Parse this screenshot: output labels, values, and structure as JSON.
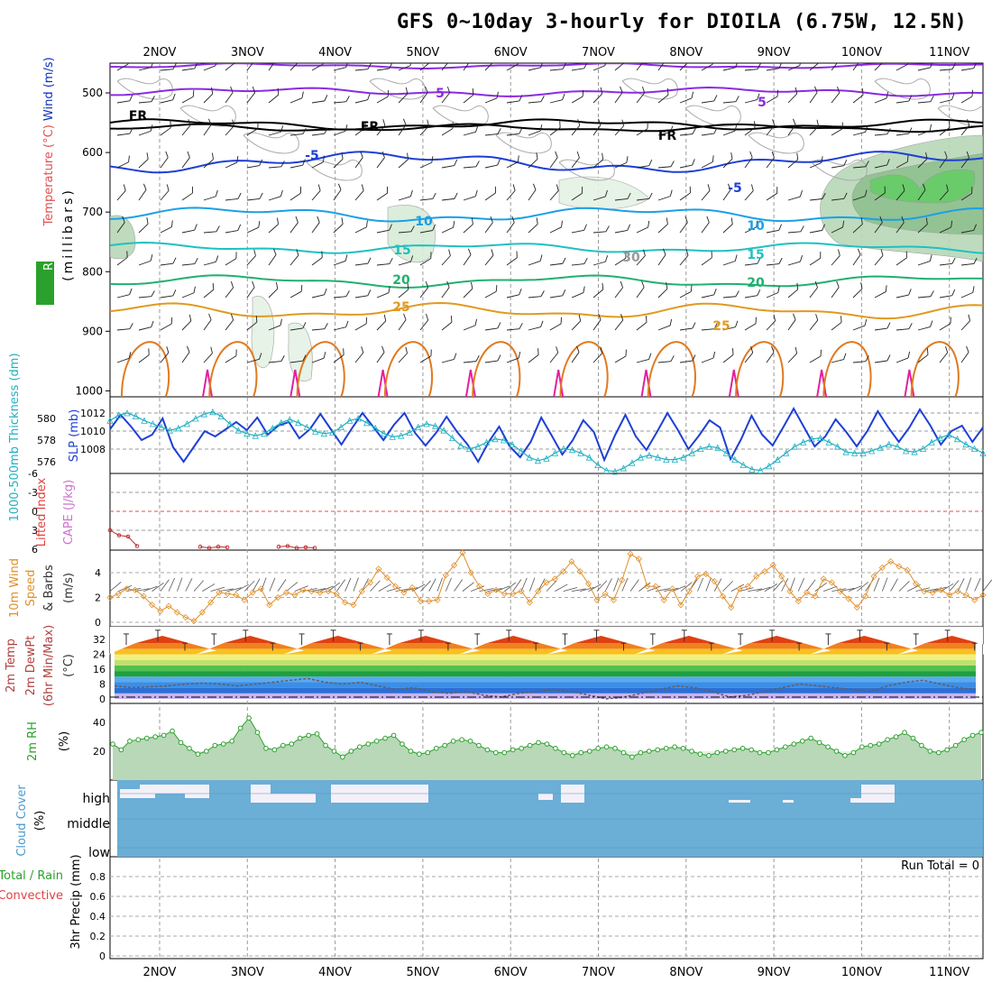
{
  "title": "GFS 0~10day 3-hourly for DIOILA (6.75W, 12.5N)",
  "dates": [
    "2NOV",
    "3NOV",
    "4NOV",
    "5NOV",
    "6NOV",
    "7NOV",
    "8NOV",
    "9NOV",
    "10NOV",
    "11NOV"
  ],
  "colors": {
    "purple": "#8a2be2",
    "black": "#000000",
    "blue": "#1e3fd6",
    "lightblue": "#1aa0e6",
    "cyan": "#20c0c0",
    "teal": "#20b070",
    "orange": "#e09a20",
    "darkorange": "#e07a20",
    "magenta": "#e020a0",
    "cloud": "#6baed6",
    "rhgreen": "#2ca02c"
  },
  "chart_data": [
    {
      "type": "line",
      "panel": "upper-air",
      "ylabel_parts": [
        "RH (%)",
        "Temperature (°C)",
        "Wind (m/s)"
      ],
      "ylabel2": "(millibars)",
      "y_ticks": [
        500,
        600,
        700,
        800,
        900,
        1000
      ],
      "contour_labels": [
        {
          "text": "5",
          "level": "500mb",
          "color": "purple"
        },
        {
          "text": "FR",
          "level": "freezing",
          "color": "black"
        },
        {
          "text": "-5",
          "level": "600mb",
          "color": "blue"
        },
        {
          "text": "10",
          "level": "730mb",
          "color": "lightblue"
        },
        {
          "text": "15",
          "level": "780mb",
          "color": "cyan"
        },
        {
          "text": "20",
          "level": "820mb",
          "color": "teal"
        },
        {
          "text": "25",
          "level": "870mb",
          "color": "orange"
        },
        {
          "text": "30",
          "level": "RH contour",
          "color": "gray"
        }
      ]
    },
    {
      "type": "line",
      "panel": "thickness-slp",
      "ylabel_left": "1000-500mb Thickness (dm)",
      "ylabel_right": "SLP (mb)",
      "thickness_ticks": [
        576,
        578,
        580
      ],
      "slp_ticks": [
        1008,
        1010,
        1012
      ],
      "series": [
        {
          "name": "SLP (mb)",
          "values": [
            1010.2,
            1011.8,
            1010.5,
            1009,
            1009.6,
            1011.4,
            1008.2,
            1006.6,
            1008.3,
            1010,
            1009.4,
            1010.2,
            1011,
            1010.1,
            1011.5,
            1009.6,
            1010.6,
            1011,
            1009.2,
            1010.2,
            1011.9,
            1010.2,
            1008.5,
            1010.3,
            1012,
            1010.5,
            1009,
            1010.7,
            1012,
            1009.8,
            1008.4,
            1009.8,
            1011.6,
            1009.9,
            1008.5,
            1006.6,
            1008.8,
            1010.5,
            1008.3,
            1007.1,
            1008.8,
            1011.5,
            1009.5,
            1007.4,
            1009,
            1011.2,
            1009.9,
            1006.8,
            1009.5,
            1011.8,
            1009.4,
            1007.9,
            1009.9,
            1012,
            1010.1,
            1008,
            1009.5,
            1011.2,
            1010.4,
            1006.9,
            1009.1,
            1011.7,
            1009.6,
            1008.4,
            1010.4,
            1012.5,
            1010.4,
            1008.3,
            1009.4,
            1011.3,
            1009.9,
            1008.3,
            1010,
            1012.2,
            1010.4,
            1008.8,
            1010.4,
            1012.4,
            1010.6,
            1008.5,
            1010,
            1010.6,
            1008.8,
            1010.4
          ]
        },
        {
          "name": "1000-500mb Thickness (dm)",
          "values": [
            579.8,
            580.3,
            580.5,
            580.2,
            579.8,
            579.5,
            579.2,
            578.9,
            579.1,
            579.5,
            580,
            580.4,
            580.6,
            580.2,
            579.5,
            578.9,
            578.6,
            578.4,
            578.6,
            579.1,
            579.6,
            579.9,
            579.6,
            579.2,
            578.8,
            578.6,
            578.7,
            579.2,
            579.8,
            580,
            579.6,
            579.1,
            578.6,
            578.3,
            578.4,
            578.7,
            579.2,
            579.5,
            579.3,
            578.9,
            578.2,
            577.5,
            577.2,
            577.4,
            577.8,
            578.1,
            578,
            577.6,
            577,
            576.4,
            576.1,
            576.3,
            576.8,
            577.2,
            577.1,
            576.8,
            576.4,
            575.7,
            575.2,
            575.1,
            575.4,
            575.9,
            576.4,
            576.6,
            576.4,
            576.2,
            576.2,
            576.4,
            576.8,
            577.2,
            577.4,
            577.3,
            576.8,
            576.2,
            575.7,
            575.3,
            575.2,
            575.6,
            576.2,
            576.8,
            577.4,
            577.8,
            578.1,
            578.2,
            577.8,
            577.4,
            576.9,
            576.8,
            576.8,
            577,
            577.3,
            577.6,
            577.4,
            577,
            576.9,
            577.2,
            577.8,
            578.2,
            578.5,
            578.1,
            577.6,
            577.2,
            576.8
          ]
        }
      ]
    },
    {
      "type": "line",
      "panel": "stability",
      "ylabel_left": "Lifted Index",
      "ylabel_right": "CAPE (J/kg)",
      "y_ticks": [
        "-6",
        "-3",
        "0",
        "3",
        "6"
      ],
      "series": [
        {
          "name": "Lifted Index",
          "values": [
            3,
            3.8,
            4,
            5.5
          ]
        },
        {
          "name": "Lifted Index",
          "values": [
            5.6,
            5.8,
            5.6,
            5.7
          ]
        },
        {
          "name": "Lifted Index",
          "values": [
            5.6,
            5.5,
            5.8,
            5.7,
            5.8
          ]
        }
      ]
    },
    {
      "type": "line",
      "panel": "wind",
      "ylabel": "10m Wind Speed & Barbs (m/s)",
      "ylabel_parts": [
        "10m Wind",
        "Speed",
        "& Barbs",
        "(m/s)"
      ],
      "y_ticks": [
        0,
        2,
        4
      ],
      "series": [
        {
          "name": "10m Wind Speed (m/s)",
          "values": [
            2,
            2.3,
            2.7,
            2.6,
            2.1,
            1.4,
            0.9,
            1.3,
            0.8,
            0.4,
            0.1,
            0.8,
            1.6,
            2.4,
            2.3,
            2.2,
            1.8,
            2.4,
            2.7,
            1.4,
            2,
            2.4,
            2.2,
            2.6,
            2.5,
            2.4,
            2.5,
            2.3,
            1.6,
            1.4,
            2.5,
            3.2,
            4.3,
            3.6,
            2.9,
            2.4,
            2.8,
            1.7,
            1.7,
            1.8,
            3.8,
            4.6,
            5.6,
            4,
            2.9,
            2.3,
            2.6,
            2.3,
            2.3,
            2.5,
            1.6,
            2.5,
            3.2,
            3.5,
            4.1,
            4.9,
            4.1,
            3.1,
            1.8,
            2.3,
            1.8,
            3.4,
            5.5,
            5.1,
            2.9,
            2.9,
            1.8,
            2.7,
            1.4,
            2.5,
            3.7,
            3.9,
            3.3,
            2.1,
            1.2,
            2.7,
            2.9,
            3.7,
            4.1,
            4.6,
            3.7,
            2.5,
            1.7,
            2.4,
            2.1,
            3.5,
            3.2,
            2.5,
            1.9,
            1.2,
            2.1,
            3.7,
            4.4,
            4.9,
            4.5,
            4.2,
            3.1,
            2.5,
            2.4,
            2.6,
            2.2,
            2.5,
            2.2,
            1.8,
            2.2
          ]
        }
      ]
    },
    {
      "type": "area",
      "panel": "temperature",
      "ylabel_parts": [
        "2m Temp",
        "2m DewPt",
        "(6hr Min/Max)",
        "(°C)"
      ],
      "y_ticks": [
        0,
        8,
        16,
        24,
        32
      ],
      "series": [
        {
          "name": "2m Temp (°C)",
          "daily_min": 24,
          "daily_max": 36
        },
        {
          "name": "2m DewPt (°C)",
          "values": [
            7,
            6,
            6.5,
            7,
            8,
            8.5,
            8,
            7,
            8,
            9,
            10,
            11,
            9,
            8,
            9,
            7,
            5,
            6,
            4,
            3,
            4,
            2,
            1,
            3,
            4,
            5,
            4,
            2,
            0,
            1,
            3,
            5,
            7,
            6,
            4,
            1,
            2,
            4,
            6,
            8,
            7,
            6,
            5,
            4,
            7,
            9,
            10,
            8,
            6,
            5
          ]
        }
      ]
    },
    {
      "type": "area",
      "panel": "rh",
      "ylabel_parts": [
        "2m RH",
        "(%)"
      ],
      "y_ticks": [
        20,
        40
      ],
      "series": [
        {
          "name": "2m RH (%)",
          "values": [
            25,
            21,
            27,
            28,
            29,
            30,
            31,
            34,
            26,
            22,
            18,
            20,
            24,
            25,
            27,
            36,
            43,
            33,
            22,
            21,
            24,
            25,
            29,
            31,
            32,
            24,
            20,
            16,
            20,
            23,
            25,
            27,
            29,
            31,
            25,
            20,
            18,
            19,
            22,
            24,
            27,
            28,
            27,
            24,
            21,
            19,
            19,
            21,
            22,
            24,
            26,
            25,
            22,
            19,
            17,
            19,
            20,
            22,
            23,
            22,
            19,
            16,
            19,
            20,
            21,
            22,
            23,
            22,
            20,
            18,
            17,
            19,
            20,
            21,
            22,
            21,
            19,
            19,
            21,
            23,
            25,
            27,
            29,
            26,
            23,
            20,
            17,
            19,
            23,
            24,
            25,
            28,
            30,
            33,
            29,
            24,
            20,
            19,
            21,
            24,
            28,
            31,
            33
          ]
        }
      ]
    },
    {
      "type": "area",
      "panel": "cloud",
      "ylabel_parts": [
        "Cloud Cover",
        "(%)"
      ],
      "y_labels": [
        "high",
        "middle",
        "low"
      ]
    },
    {
      "type": "bar",
      "panel": "precip",
      "ylabel_parts": [
        "Total / Rain",
        "Convective",
        "3hr Precip (mm)"
      ],
      "y_ticks": [
        0,
        0.2,
        0.4,
        0.6,
        0.8
      ],
      "annotation": "Run Total = 0",
      "series": [
        {
          "name": "Total / Rain",
          "values": [
            0,
            0,
            0,
            0,
            0,
            0,
            0,
            0,
            0,
            0
          ]
        },
        {
          "name": "Convective",
          "values": [
            0,
            0,
            0,
            0,
            0,
            0,
            0,
            0,
            0,
            0
          ]
        }
      ]
    }
  ]
}
